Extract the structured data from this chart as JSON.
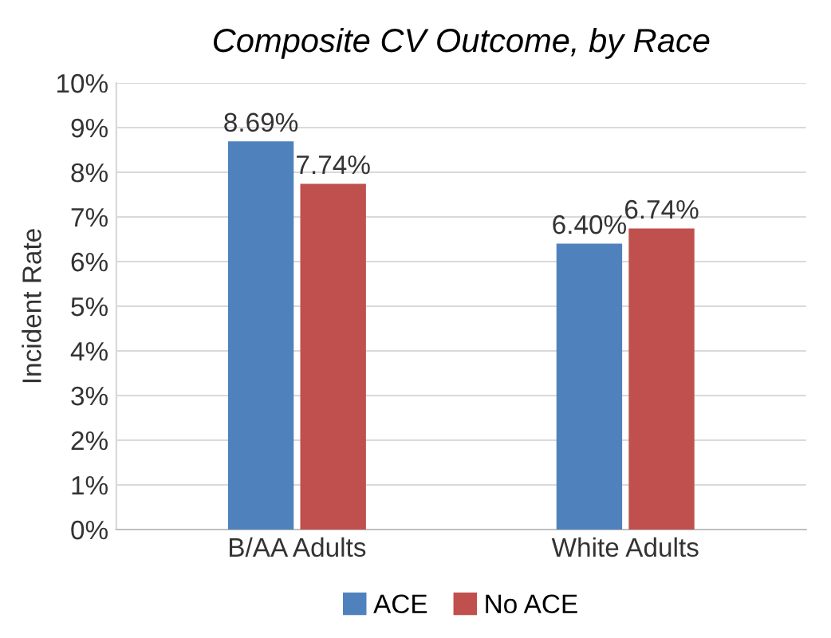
{
  "chart_data": {
    "type": "bar",
    "title": "Composite CV Outcome, by Race",
    "ylabel": "Incident Rate",
    "categories": [
      "B/AA Adults",
      "White Adults"
    ],
    "series": [
      {
        "name": "ACE",
        "color": "#4f81bd",
        "values": [
          8.69,
          6.4
        ],
        "value_labels": [
          "8.69%",
          "6.40%"
        ]
      },
      {
        "name": "No ACE",
        "color": "#c0504d",
        "values": [
          7.74,
          6.74
        ],
        "value_labels": [
          "7.74%",
          "6.74%"
        ]
      }
    ],
    "ylim": [
      0,
      10
    ],
    "yticks": [
      {
        "value": 0,
        "label": "0%"
      },
      {
        "value": 1,
        "label": "1%"
      },
      {
        "value": 2,
        "label": "2%"
      },
      {
        "value": 3,
        "label": "3%"
      },
      {
        "value": 4,
        "label": "4%"
      },
      {
        "value": 5,
        "label": "5%"
      },
      {
        "value": 6,
        "label": "6%"
      },
      {
        "value": 7,
        "label": "7%"
      },
      {
        "value": 8,
        "label": "8%"
      },
      {
        "value": 9,
        "label": "9%"
      },
      {
        "value": 10,
        "label": "10%"
      }
    ],
    "grid": "y",
    "legend": "bottom"
  }
}
